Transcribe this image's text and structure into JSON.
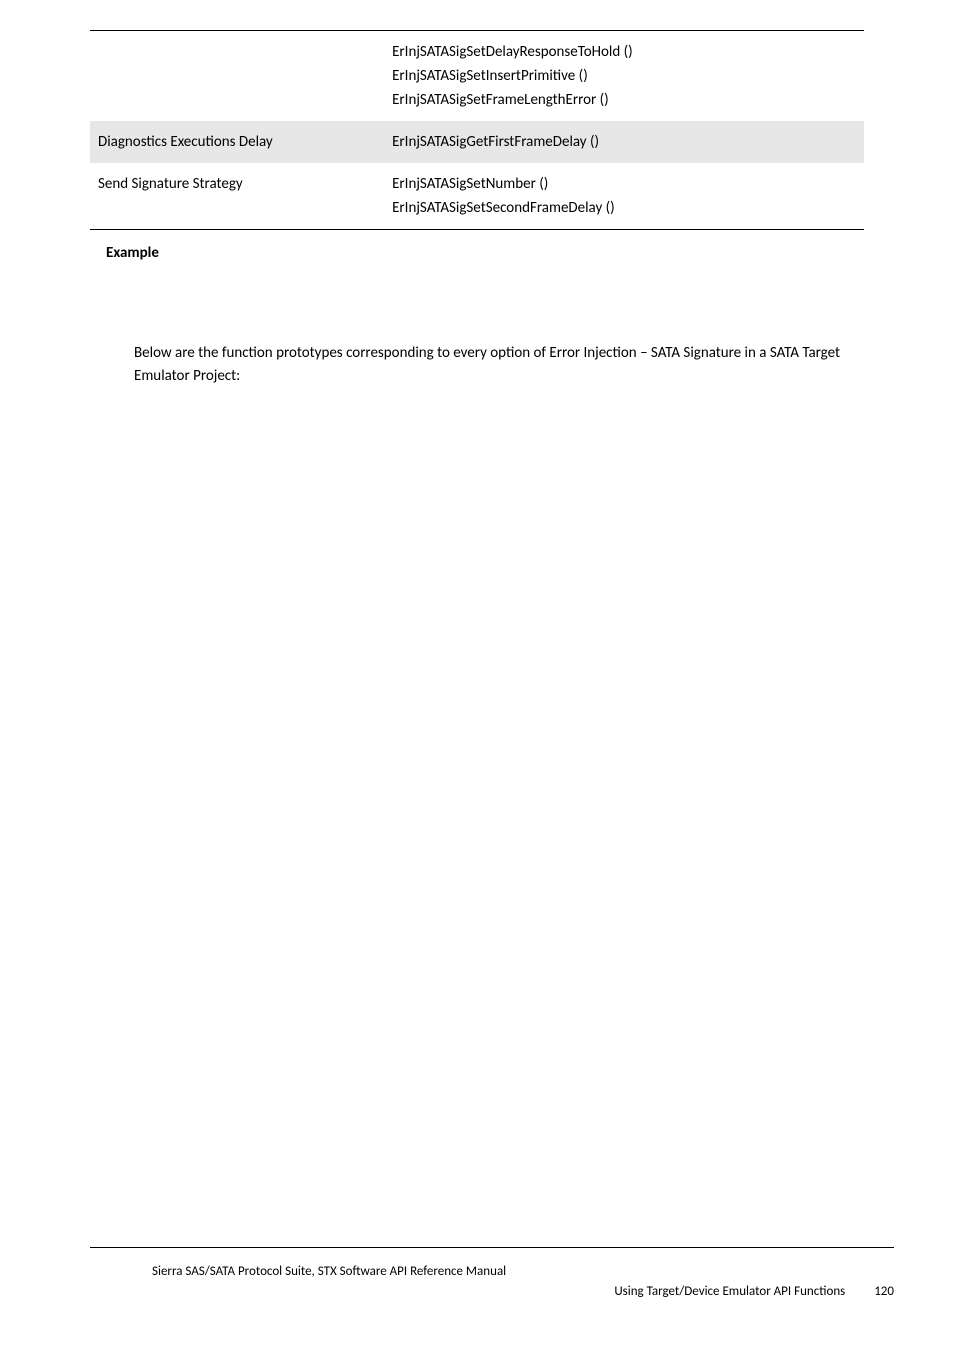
{
  "table": {
    "rows": [
      {
        "left": "",
        "right_lines": [
          "ErInjSATASigSetDelayResponseToHold ()",
          "ErInjSATASigSetInsertPrimitive ()",
          "ErInjSATASigSetFrameLengthError ()"
        ],
        "shaded": false,
        "top_rule": true
      },
      {
        "left": "Diagnostics Executions Delay",
        "right_lines": [
          "ErInjSATASigGetFirstFrameDelay ()"
        ],
        "shaded": true,
        "top_rule": false
      },
      {
        "left": "Send Signature Strategy",
        "right_lines": [
          "ErInjSATASigSetNumber ()",
          "ErInjSATASigSetSecondFrameDelay ()"
        ],
        "shaded": false,
        "top_rule": false,
        "bottom_rule": true
      }
    ]
  },
  "section_heading": "Example",
  "body_text": "Below are the function prototypes corresponding to every option of Error Injection – SATA Signature in a SATA Target Emulator Project:",
  "footer": {
    "line1": "Sierra SAS/SATA Protocol Suite, STX Software API Reference Manual",
    "line2_text": "Using Target/Device Emulator API Functions",
    "page_number": "120"
  }
}
